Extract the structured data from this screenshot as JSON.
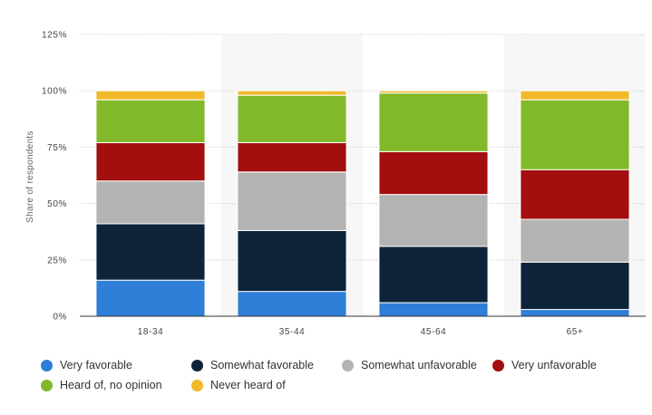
{
  "chart_data": {
    "type": "bar",
    "stacked": true,
    "categories": [
      "18-34",
      "35-44",
      "45-64",
      "65+"
    ],
    "ylabel": "Share of respondents",
    "ylim": [
      0,
      125
    ],
    "yticks": [
      "0%",
      "25%",
      "50%",
      "75%",
      "100%",
      "125%"
    ],
    "grid": true,
    "legend": "bottom",
    "series": [
      {
        "name": "Very favorable",
        "color": "#2f7ed8",
        "values": [
          16,
          11,
          6,
          3
        ]
      },
      {
        "name": "Somewhat favorable",
        "color": "#0d233a",
        "values": [
          25,
          27,
          25,
          21
        ]
      },
      {
        "name": "Somewhat unfavorable",
        "color": "#b3b3b3",
        "values": [
          19,
          26,
          23,
          19
        ]
      },
      {
        "name": "Very unfavorable",
        "color": "#a30e0e",
        "values": [
          17,
          13,
          19,
          22
        ]
      },
      {
        "name": "Heard of, no opinion",
        "color": "#82b92a",
        "values": [
          19,
          21,
          26,
          31
        ]
      },
      {
        "name": "Never heard of",
        "color": "#f1b92b",
        "values": [
          4,
          2,
          1,
          4
        ]
      }
    ]
  }
}
